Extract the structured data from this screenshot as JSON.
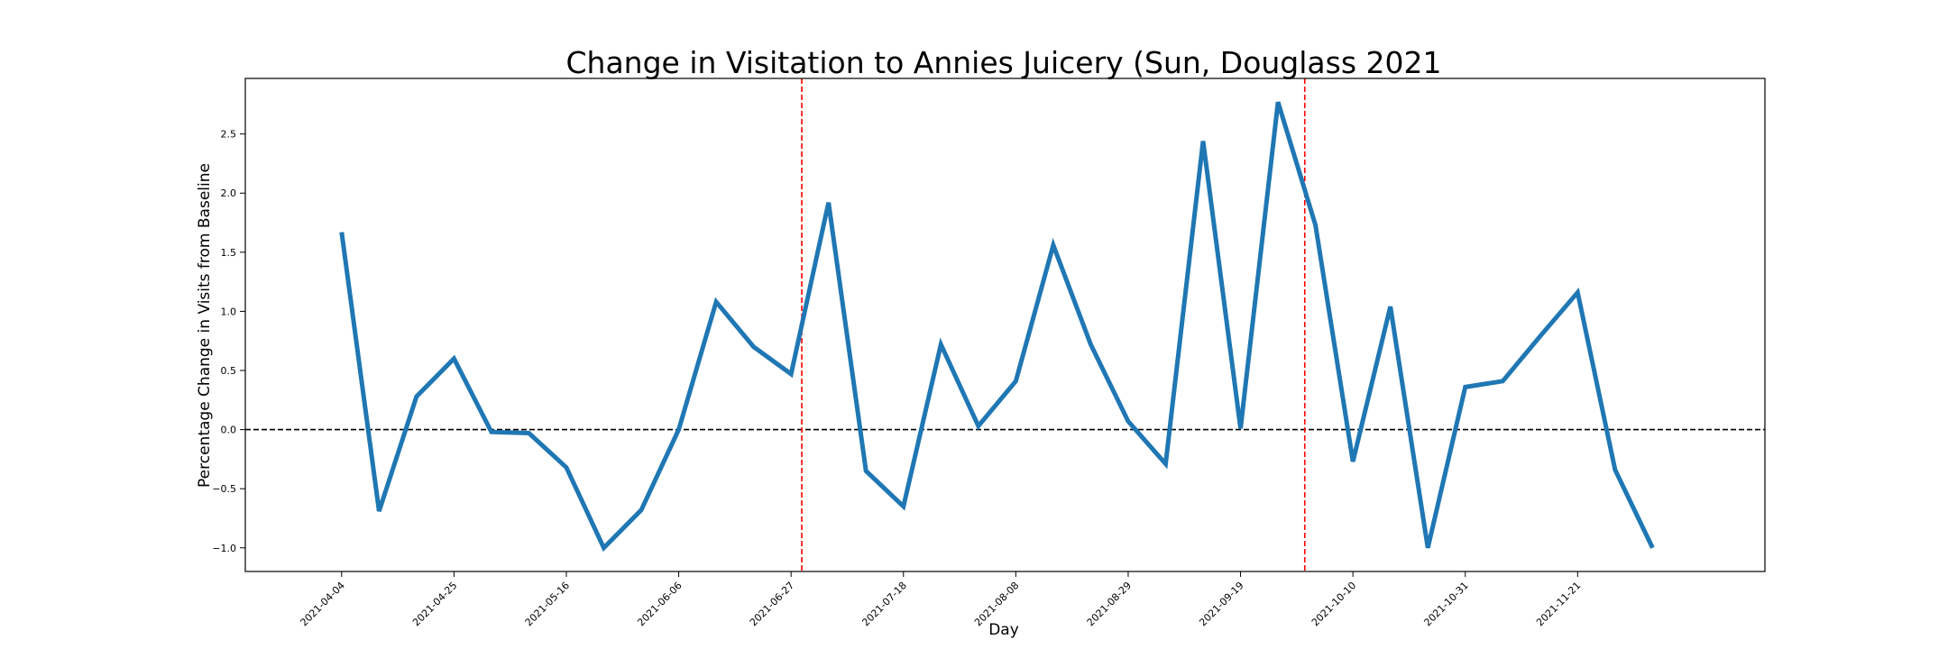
{
  "chart_data": {
    "type": "line",
    "title": "Change in Visitation to Annies Juicery (Sun, Douglass 2021",
    "xlabel": "Day",
    "ylabel": "Percentage Change in Visits from Baseline",
    "x": [
      "2021-04-04",
      "2021-04-11",
      "2021-04-18",
      "2021-04-25",
      "2021-05-02",
      "2021-05-09",
      "2021-05-16",
      "2021-05-23",
      "2021-05-30",
      "2021-06-06",
      "2021-06-13",
      "2021-06-20",
      "2021-06-27",
      "2021-07-04",
      "2021-07-11",
      "2021-07-18",
      "2021-07-25",
      "2021-08-01",
      "2021-08-08",
      "2021-08-15",
      "2021-08-22",
      "2021-08-29",
      "2021-09-05",
      "2021-09-12",
      "2021-09-19",
      "2021-09-26",
      "2021-10-03",
      "2021-10-10",
      "2021-10-17",
      "2021-10-24",
      "2021-10-31",
      "2021-11-07",
      "2021-11-14",
      "2021-11-21",
      "2021-11-28",
      "2021-12-05"
    ],
    "series": [
      {
        "color": "#1f77b4",
        "values": [
          1.67,
          -0.69,
          0.28,
          0.6,
          -0.02,
          -0.03,
          -0.32,
          -1.0,
          -0.68,
          0.0,
          1.08,
          0.7,
          0.47,
          1.92,
          -0.35,
          -0.65,
          0.72,
          0.03,
          0.41,
          1.56,
          0.72,
          0.07,
          -0.29,
          2.44,
          0.01,
          2.77,
          1.73,
          -0.27,
          1.04,
          -1.0,
          0.36,
          0.41,
          0.79,
          1.16,
          -0.34,
          -1.0
        ]
      }
    ],
    "xticks": [
      "2021-04-04",
      "2021-04-25",
      "2021-05-16",
      "2021-06-06",
      "2021-06-27",
      "2021-07-18",
      "2021-08-08",
      "2021-08-29",
      "2021-09-19",
      "2021-10-10",
      "2021-10-31",
      "2021-11-21"
    ],
    "yticks": [
      -1.0,
      -0.5,
      0.0,
      0.5,
      1.0,
      1.5,
      2.0,
      2.5
    ],
    "ytick_labels": [
      "−1.0",
      "−0.5",
      "0.0",
      "0.5",
      "1.0",
      "1.5",
      "2.0",
      "2.5"
    ],
    "xlim": [
      "2021-03-17",
      "2021-12-26"
    ],
    "ylim": [
      -1.2,
      2.97
    ],
    "reference_lines": [
      {
        "orientation": "horizontal",
        "value": 0,
        "color": "#000000",
        "style": "dashed"
      },
      {
        "orientation": "vertical",
        "value": "2021-06-29",
        "color": "#ff0000",
        "style": "dashed"
      },
      {
        "orientation": "vertical",
        "value": "2021-10-01",
        "color": "#ff0000",
        "style": "dashed"
      }
    ],
    "grid": false,
    "legend": "none"
  }
}
